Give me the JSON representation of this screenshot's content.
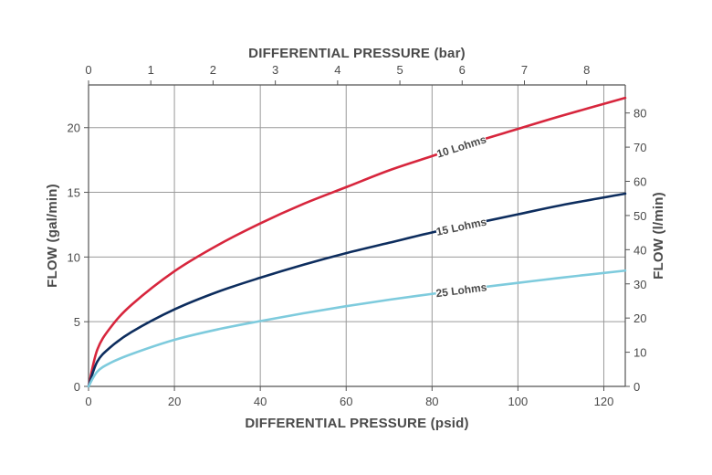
{
  "chart_data": {
    "type": "line",
    "xlabel": "DIFFERENTIAL PRESSURE (psid)",
    "x2label": "DIFFERENTIAL PRESSURE (bar)",
    "ylabel": "FLOW (gal/min)",
    "y2label": "FLOW (l/min)",
    "xlim": [
      0,
      125
    ],
    "ylim": [
      0,
      23.3
    ],
    "x2lim": [
      0,
      8.62
    ],
    "y2lim": [
      0,
      88.2
    ],
    "x_ticks": [
      "0",
      "20",
      "40",
      "60",
      "80",
      "100",
      "120"
    ],
    "y_ticks": [
      "0",
      "5",
      "10",
      "15",
      "20"
    ],
    "x2_ticks": [
      "0",
      "1",
      "2",
      "3",
      "4",
      "5",
      "6",
      "7",
      "8"
    ],
    "y2_ticks": [
      "0",
      "10",
      "20",
      "30",
      "40",
      "50",
      "60",
      "70",
      "80"
    ],
    "grid": true,
    "x": [
      0,
      2,
      5,
      10,
      20,
      30,
      40,
      50,
      60,
      70,
      80,
      90,
      100,
      110,
      125
    ],
    "series": [
      {
        "name": "10 Lohms",
        "color": "#d7263d",
        "values": [
          0,
          2.8,
          4.5,
          6.3,
          8.9,
          10.9,
          12.6,
          14.1,
          15.4,
          16.7,
          17.8,
          18.9,
          19.9,
          20.9,
          22.3
        ]
      },
      {
        "name": "15 Lohms",
        "color": "#0d2d5e",
        "values": [
          0,
          1.9,
          3.0,
          4.2,
          5.95,
          7.3,
          8.4,
          9.4,
          10.3,
          11.1,
          11.9,
          12.6,
          13.3,
          14.0,
          14.9
        ]
      },
      {
        "name": "25 Lohms",
        "color": "#7ecbdd",
        "values": [
          0,
          1.13,
          1.8,
          2.5,
          3.6,
          4.4,
          5.05,
          5.65,
          6.2,
          6.7,
          7.15,
          7.6,
          8.0,
          8.4,
          8.95
        ]
      }
    ],
    "annotations": [
      "10 Lohms",
      "15 Lohms",
      "25 Lohms"
    ]
  }
}
